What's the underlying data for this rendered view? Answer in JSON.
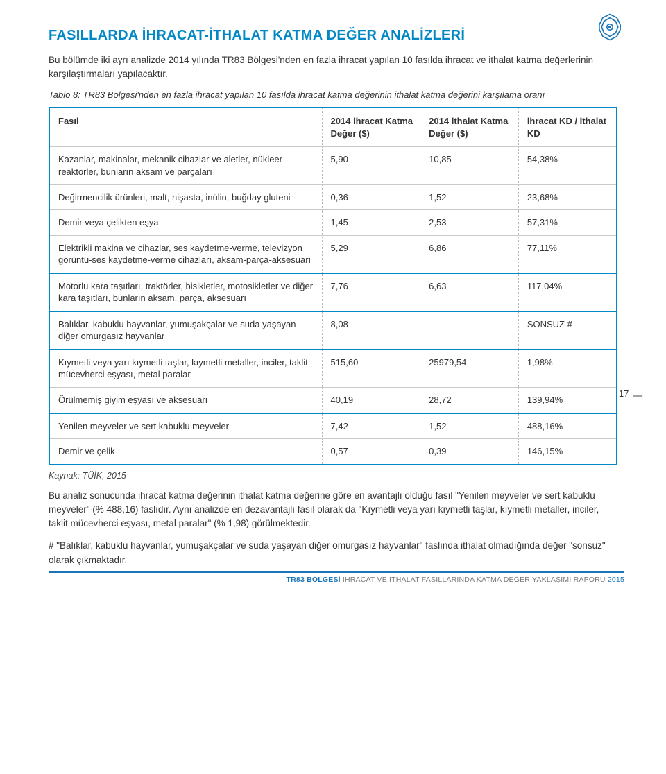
{
  "logo": {
    "stroke": "#1a75b8",
    "fill": "#ffffff"
  },
  "heading": "FASILLARDA İHRACAT-İTHALAT KATMA DEĞER ANALİZLERİ",
  "intro": "Bu bölümde iki ayrı analizde 2014 yılında TR83 Bölgesi'nden en fazla ihracat yapılan 10 fasılda ihracat ve ithalat katma değerlerinin karşılaştırmaları yapılacaktır.",
  "table_caption": "Tablo 8: TR83 Bölgesi'nden en fazla ihracat yapılan 10 fasılda ihracat katma değerinin ithalat katma değerini karşılama oranı",
  "table": {
    "columns": [
      {
        "key": "fasil",
        "label": "Fasıl",
        "class": "col-fasil"
      },
      {
        "key": "ihracat",
        "label": "2014 İhracat Katma Değer ($)",
        "class": "col-v"
      },
      {
        "key": "ithalat",
        "label": "2014 İthalat Katma Değer ($)",
        "class": "col-v"
      },
      {
        "key": "oran",
        "label": "İhracat KD / İthalat KD",
        "class": "col-v"
      }
    ],
    "groups": [
      {
        "rows": [
          {
            "fasil": "Kazanlar, makinalar, mekanik cihazlar ve aletler, nükleer reaktörler, bunların aksam ve parçaları",
            "ihracat": "5,90",
            "ithalat": "10,85",
            "oran": "54,38%"
          },
          {
            "fasil": "Değirmencilik ürünleri, malt, nişasta, inülin, buğday gluteni",
            "ihracat": "0,36",
            "ithalat": "1,52",
            "oran": "23,68%"
          },
          {
            "fasil": "Demir veya çelikten eşya",
            "ihracat": "1,45",
            "ithalat": "2,53",
            "oran": "57,31%"
          },
          {
            "fasil": "Elektrikli makina ve cihazlar, ses kaydetme-verme, televizyon görüntü-ses kaydetme-verme cihazları, aksam-parça-aksesuarı",
            "ihracat": "5,29",
            "ithalat": "6,86",
            "oran": "77,11%"
          }
        ]
      },
      {
        "rows": [
          {
            "fasil": "Motorlu kara taşıtları, traktörler, bisikletler, motosikletler ve diğer kara taşıtları, bunların aksam, parça, aksesuarı",
            "ihracat": "7,76",
            "ithalat": "6,63",
            "oran": "117,04%"
          }
        ]
      },
      {
        "rows": [
          {
            "fasil": "Balıklar, kabuklu hayvanlar, yumuşakçalar ve suda yaşayan diğer omurgasız hayvanlar",
            "ihracat": "8,08",
            "ithalat": "-",
            "oran": "SONSUZ #"
          }
        ]
      },
      {
        "rows": [
          {
            "fasil": "Kıymetli veya yarı kıymetli taşlar, kıymetli metaller, inciler, taklit mücevherci eşyası, metal paralar",
            "ihracat": "515,60",
            "ithalat": "25979,54",
            "oran": "1,98%"
          },
          {
            "fasil": "Örülmemiş giyim eşyası ve aksesuarı",
            "ihracat": "40,19",
            "ithalat": "28,72",
            "oran": "139,94%"
          }
        ]
      },
      {
        "rows": [
          {
            "fasil": "Yenilen meyveler ve sert kabuklu meyveler",
            "ihracat": "7,42",
            "ithalat": "1,52",
            "oran": "488,16%"
          },
          {
            "fasil": "Demir ve çelik",
            "ihracat": "0,57",
            "ithalat": "0,39",
            "oran": "146,15%"
          }
        ]
      }
    ]
  },
  "page_number": "17",
  "source": "Kaynak: TÜİK, 2015",
  "para1": "Bu analiz sonucunda ihracat katma değerinin ithalat katma değerine göre en avantajlı olduğu fasıl \"Yenilen meyveler ve sert kabuklu meyveler\" (% 488,16) faslıdır. Aynı analizde en dezavantajlı fasıl olarak da \"Kıymetli veya yarı kıymetli taşlar, kıymetli metaller, inciler, taklit mücevherci eşyası, metal paralar\" (% 1,98) görülmektedir.",
  "para2": "# \"Balıklar, kabuklu hayvanlar, yumuşakçalar ve suda yaşayan diğer omurgasız hayvanlar\" faslında ithalat olmadığında değer \"sonsuz\" olarak çıkmaktadır.",
  "footer": {
    "brand": "TR83 BÖLGESİ",
    "mid": " İHRACAT VE İTHALAT FASILLARINDA KATMA DEĞER YAKLAŞIMI RAPORU ",
    "year": "2015",
    "line_color": "#1a75b8"
  }
}
